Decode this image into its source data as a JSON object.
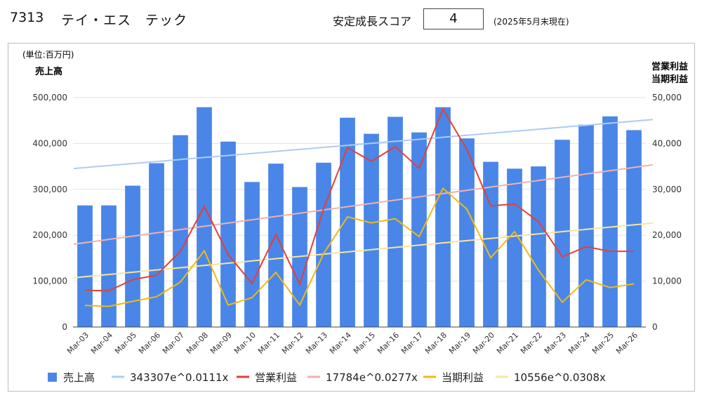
{
  "header": {
    "code": "7313",
    "name": "テイ・エス　テック",
    "score_label": "安定成長スコア",
    "score_value": "4",
    "score_date": "(2025年5月末現在)"
  },
  "chart_data": {
    "type": "bar",
    "unit_label": "(単位:百万円)",
    "ylabel_left": "売上高",
    "ylabel_right": [
      "営業利益",
      "当期利益"
    ],
    "categories": [
      "Mar-03",
      "Mar-04",
      "Mar-05",
      "Mar-06",
      "Mar-07",
      "Mar-08",
      "Mar-09",
      "Mar-10",
      "Mar-11",
      "Mar-12",
      "Mar-13",
      "Mar-14",
      "Mar-15",
      "Mar-16",
      "Mar-17",
      "Mar-18",
      "Mar-19",
      "Mar-20",
      "Mar-21",
      "Mar-22",
      "Mar-23",
      "Mar-24",
      "Mar-25",
      "Mar-26"
    ],
    "ylim_left": [
      0,
      500000
    ],
    "ylim_right": [
      0,
      50000
    ],
    "yticks_left": [
      "0",
      "100,000",
      "200,000",
      "300,000",
      "400,000",
      "500,000"
    ],
    "yticks_right": [
      "0",
      "10,000",
      "20,000",
      "30,000",
      "40,000",
      "50,000"
    ],
    "grid": true,
    "legend_position": "bottom",
    "series": [
      {
        "name": "売上高",
        "type": "bar",
        "axis": "left",
        "color": "#4a86e8",
        "values": [
          265000,
          265000,
          308000,
          357000,
          418000,
          479000,
          404000,
          316000,
          356000,
          305000,
          358000,
          456000,
          421000,
          458000,
          424000,
          479000,
          411000,
          360000,
          345000,
          350000,
          408000,
          441000,
          459000,
          429000
        ]
      },
      {
        "name": "営業利益",
        "type": "line",
        "axis": "right",
        "color": "#e0413a",
        "values": [
          8000,
          7900,
          10300,
          11300,
          16500,
          26300,
          15800,
          9500,
          20200,
          9300,
          25800,
          39100,
          36100,
          39300,
          34600,
          47500,
          38700,
          26400,
          26800,
          23000,
          15300,
          17500,
          16500,
          16500
        ]
      },
      {
        "name": "当期利益",
        "type": "line",
        "axis": "right",
        "color": "#f1b913",
        "values": [
          4700,
          4500,
          5600,
          6600,
          9800,
          16600,
          4800,
          6400,
          11900,
          4800,
          16000,
          24000,
          22700,
          23600,
          19700,
          30200,
          25700,
          15100,
          20800,
          12400,
          5400,
          10300,
          8600,
          9400
        ]
      }
    ],
    "trendlines": [
      {
        "name": "343307e^0.0111x",
        "axis": "left",
        "color": "#aecbf5",
        "a": 343307,
        "b": 0.0111
      },
      {
        "name": "17784e^0.0277x",
        "axis": "right",
        "color": "#f1b0ae",
        "a": 17784,
        "b": 0.0277
      },
      {
        "name": "10556e^0.0308x",
        "axis": "right",
        "color": "#fae49f",
        "a": 10556,
        "b": 0.0308
      }
    ]
  }
}
